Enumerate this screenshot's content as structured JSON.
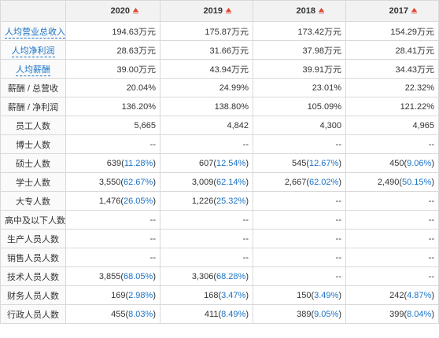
{
  "columns": [
    {
      "year": "2020"
    },
    {
      "year": "2019"
    },
    {
      "year": "2018"
    },
    {
      "year": "2017"
    }
  ],
  "rows": [
    {
      "label": "人均营业总收入",
      "linked": true,
      "cells": [
        {
          "v": "194.63万元"
        },
        {
          "v": "175.87万元"
        },
        {
          "v": "173.42万元"
        },
        {
          "v": "154.29万元"
        }
      ]
    },
    {
      "label": "人均净利润",
      "linked": true,
      "cells": [
        {
          "v": "28.63万元"
        },
        {
          "v": "31.66万元"
        },
        {
          "v": "37.98万元"
        },
        {
          "v": "28.41万元"
        }
      ]
    },
    {
      "label": "人均薪酬",
      "linked": true,
      "cells": [
        {
          "v": "39.00万元"
        },
        {
          "v": "43.94万元"
        },
        {
          "v": "39.91万元"
        },
        {
          "v": "34.43万元"
        }
      ]
    },
    {
      "label": "薪酬 / 总营收",
      "linked": false,
      "cells": [
        {
          "v": "20.04%"
        },
        {
          "v": "24.99%"
        },
        {
          "v": "23.01%"
        },
        {
          "v": "22.32%"
        }
      ]
    },
    {
      "label": "薪酬 / 净利润",
      "linked": false,
      "cells": [
        {
          "v": "136.20%"
        },
        {
          "v": "138.80%"
        },
        {
          "v": "105.09%"
        },
        {
          "v": "121.22%"
        }
      ]
    },
    {
      "label": "员工人数",
      "linked": false,
      "cells": [
        {
          "v": "5,665"
        },
        {
          "v": "4,842"
        },
        {
          "v": "4,300"
        },
        {
          "v": "4,965"
        }
      ]
    },
    {
      "label": "博士人数",
      "linked": false,
      "cells": [
        {
          "v": "--"
        },
        {
          "v": "--"
        },
        {
          "v": "--"
        },
        {
          "v": "--"
        }
      ]
    },
    {
      "label": "硕士人数",
      "linked": false,
      "cells": [
        {
          "v": "639",
          "p": "11.28%"
        },
        {
          "v": "607",
          "p": "12.54%"
        },
        {
          "v": "545",
          "p": "12.67%"
        },
        {
          "v": "450",
          "p": "9.06%"
        }
      ]
    },
    {
      "label": "学士人数",
      "linked": false,
      "cells": [
        {
          "v": "3,550",
          "p": "62.67%"
        },
        {
          "v": "3,009",
          "p": "62.14%"
        },
        {
          "v": "2,667",
          "p": "62.02%"
        },
        {
          "v": "2,490",
          "p": "50.15%"
        }
      ]
    },
    {
      "label": "大专人数",
      "linked": false,
      "cells": [
        {
          "v": "1,476",
          "p": "26.05%"
        },
        {
          "v": "1,226",
          "p": "25.32%"
        },
        {
          "v": "--"
        },
        {
          "v": "--"
        }
      ]
    },
    {
      "label": "高中及以下人数",
      "linked": false,
      "cells": [
        {
          "v": "--"
        },
        {
          "v": "--"
        },
        {
          "v": "--"
        },
        {
          "v": "--"
        }
      ]
    },
    {
      "label": "生产人员人数",
      "linked": false,
      "cells": [
        {
          "v": "--"
        },
        {
          "v": "--"
        },
        {
          "v": "--"
        },
        {
          "v": "--"
        }
      ]
    },
    {
      "label": "销售人员人数",
      "linked": false,
      "cells": [
        {
          "v": "--"
        },
        {
          "v": "--"
        },
        {
          "v": "--"
        },
        {
          "v": "--"
        }
      ]
    },
    {
      "label": "技术人员人数",
      "linked": false,
      "cells": [
        {
          "v": "3,855",
          "p": "68.05%"
        },
        {
          "v": "3,306",
          "p": "68.28%"
        },
        {
          "v": "--"
        },
        {
          "v": "--"
        }
      ]
    },
    {
      "label": "财务人员人数",
      "linked": false,
      "cells": [
        {
          "v": "169",
          "p": "2.98%"
        },
        {
          "v": "168",
          "p": "3.47%"
        },
        {
          "v": "150",
          "p": "3.49%"
        },
        {
          "v": "242",
          "p": "4.87%"
        }
      ]
    },
    {
      "label": "行政人员人数",
      "linked": false,
      "cells": [
        {
          "v": "455",
          "p": "8.03%"
        },
        {
          "v": "411",
          "p": "8.49%"
        },
        {
          "v": "389",
          "p": "9.05%"
        },
        {
          "v": "399",
          "p": "8.04%"
        }
      ]
    }
  ],
  "colors": {
    "header_bg": "#f2f2f2",
    "link": "#1a73c7",
    "border": "#d9d9d9",
    "sort_icon": "#e0442f"
  },
  "icons": {
    "header_sort": "sort-icon"
  }
}
